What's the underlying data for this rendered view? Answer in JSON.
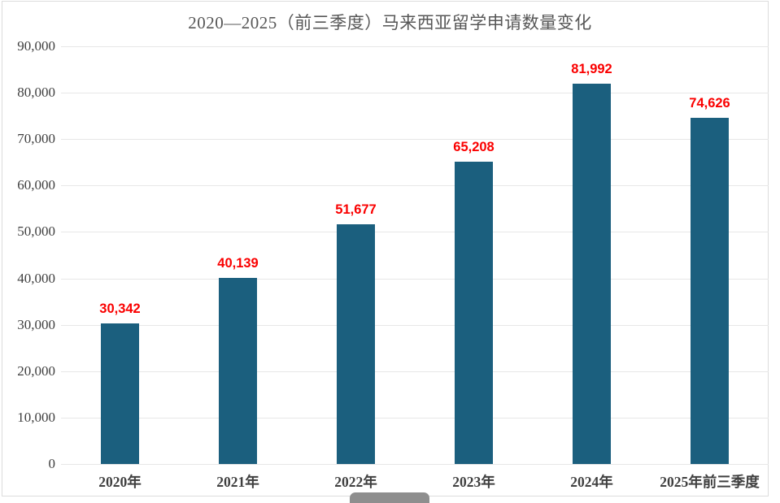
{
  "title": "2020—2025（前三季度）马来西亚留学申请数量变化",
  "colors": {
    "bar": "#1b5f7e",
    "value_label": "#fa0000",
    "title_text": "#575757",
    "axis_text": "#3f3f3f",
    "gridline": "#e7e7e7",
    "frame_border": "#dcdcdc",
    "scrollbar": "#8e8e8e"
  },
  "chart_data": {
    "type": "bar",
    "title": "2020—2025（前三季度）马来西亚留学申请数量变化",
    "categories": [
      "2020年",
      "2021年",
      "2022年",
      "2023年",
      "2024年",
      "2025年前三季度"
    ],
    "values": [
      30342,
      40139,
      51677,
      65208,
      81992,
      74626
    ],
    "value_labels": [
      "30,342",
      "40,139",
      "51,677",
      "65,208",
      "81,992",
      "74,626"
    ],
    "xlabel": "",
    "ylabel": "",
    "ylim": [
      0,
      90000
    ],
    "ytick_interval": 10000,
    "ytick_labels": [
      "0",
      "10,000",
      "20,000",
      "30,000",
      "40,000",
      "50,000",
      "60,000",
      "70,000",
      "80,000",
      "90,000"
    ],
    "grid": "horizontal",
    "legend_position": "none",
    "bar_color": "#1b5f7e",
    "value_label_color": "#fa0000"
  },
  "scrollbar": {
    "orientation": "horizontal"
  }
}
